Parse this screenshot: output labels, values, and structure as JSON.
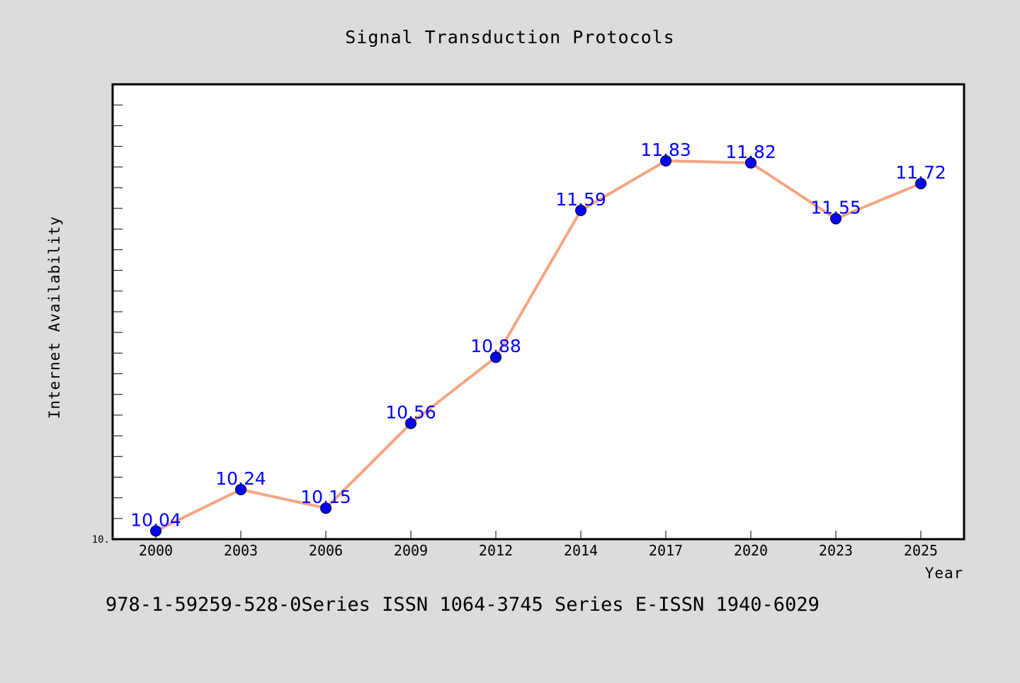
{
  "chart_data": {
    "type": "line",
    "title": "Signal Transduction Protocols",
    "xlabel": "Year",
    "ylabel": "Internet Availability",
    "categories": [
      "2000",
      "2003",
      "2006",
      "2009",
      "2012",
      "2014",
      "2017",
      "2020",
      "2023",
      "2025"
    ],
    "series": [
      {
        "values": [
          10.04,
          10.24,
          10.15,
          10.56,
          10.88,
          11.59,
          11.83,
          11.82,
          11.55,
          11.72
        ]
      }
    ],
    "data_labels": [
      "10.04",
      "10.24",
      "10.15",
      "10.56",
      "10.88",
      "11.59",
      "11.83",
      "11.82",
      "11.55",
      "11.72"
    ],
    "ylim": [
      10.0,
      12.2
    ],
    "y_minor_tick_step": 0.1,
    "y_tick_labels": [
      {
        "value": 10.0,
        "label": "10."
      }
    ],
    "grid": false,
    "line_color": "#f4a582",
    "marker_color": "#0000ff",
    "label_color": "#0000ff",
    "background_color": "#dcdcdc",
    "plot_background_color": "#ffffff"
  },
  "footer": {
    "text": "978-1-59259-528-0Series ISSN 1064-3745 Series E-ISSN 1940-6029"
  }
}
